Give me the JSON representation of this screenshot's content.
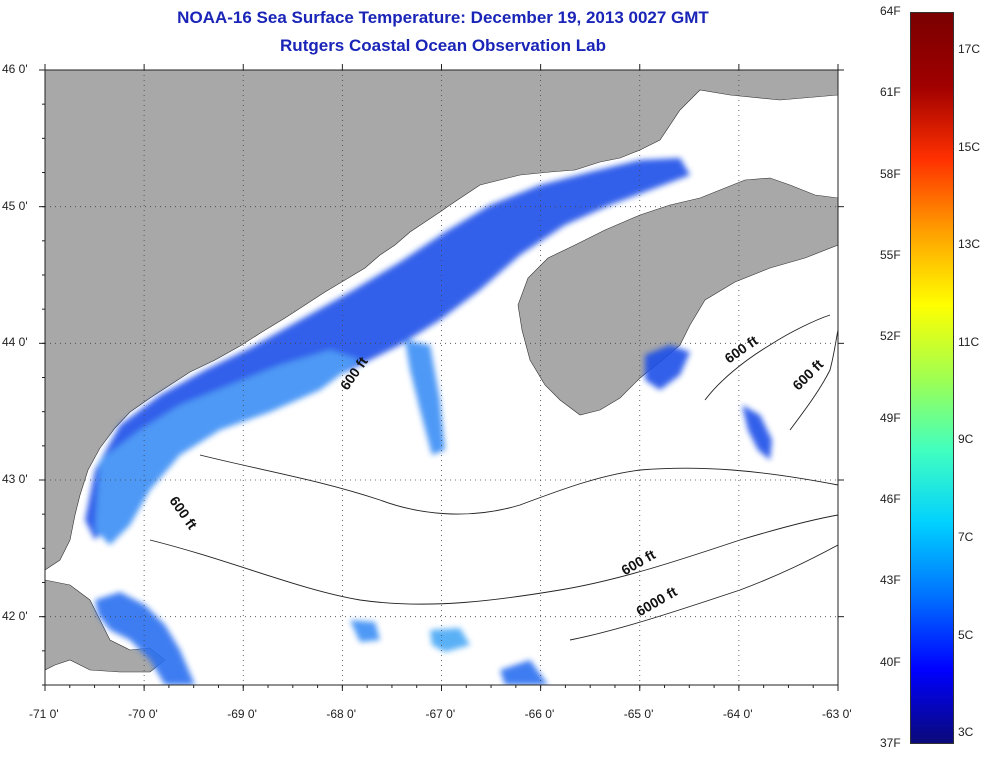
{
  "title": {
    "line1": "NOAA-16 Sea Surface Temperature:  December 19, 2013 0027 GMT",
    "line2": "Rutgers Coastal Ocean Observation Lab"
  },
  "axes": {
    "lon_ticks": [
      {
        "value": -71,
        "label": "-71 0'"
      },
      {
        "value": -70,
        "label": "-70 0'"
      },
      {
        "value": -69,
        "label": "-69 0'"
      },
      {
        "value": -68,
        "label": "-68 0'"
      },
      {
        "value": -67,
        "label": "-67 0'"
      },
      {
        "value": -66,
        "label": "-66 0'"
      },
      {
        "value": -65,
        "label": "-65 0'"
      },
      {
        "value": -64,
        "label": "-64 0'"
      },
      {
        "value": -63,
        "label": "-63 0'"
      }
    ],
    "lat_ticks": [
      {
        "value": 46,
        "label": "46 0'"
      },
      {
        "value": 45,
        "label": "45 0'"
      },
      {
        "value": 44,
        "label": "44 0'"
      },
      {
        "value": 43,
        "label": "43 0'"
      },
      {
        "value": 42,
        "label": "42 0'"
      }
    ],
    "lon_range": [
      -71,
      -63
    ],
    "lat_range": [
      41.5,
      46
    ],
    "grid": true
  },
  "contour_labels": [
    {
      "text": "600 ft",
      "lon": -67.95,
      "lat": 43.65
    },
    {
      "text": "600 ft",
      "lon": -69.75,
      "lat": 42.85
    },
    {
      "text": "600 ft",
      "lon": -64.1,
      "lat": 43.85
    },
    {
      "text": "600 ft",
      "lon": -63.4,
      "lat": 43.65
    },
    {
      "text": "600 ft",
      "lon": -65.15,
      "lat": 42.3
    },
    {
      "text": "6000 ft",
      "lon": -65.0,
      "lat": 42.0
    }
  ],
  "colorbar": {
    "fahrenheit_labels": [
      "64F",
      "61F",
      "58F",
      "55F",
      "52F",
      "49F",
      "46F",
      "43F",
      "40F",
      "37F"
    ],
    "celsius_labels": [
      "17C",
      "15C",
      "13C",
      "11C",
      "9C",
      "7C",
      "5C",
      "3C"
    ],
    "colors": [
      "#0a0a7a",
      "#0000ff",
      "#0070ff",
      "#00d0ff",
      "#40ffc0",
      "#a0ff50",
      "#ffff00",
      "#ffa000",
      "#ff3000",
      "#a00000",
      "#7a0000"
    ]
  },
  "colors": {
    "land": "#a8a8a8",
    "ocean": "#ffffff",
    "sst_cold": "#1030e0",
    "sst_mid": "#20a0f0",
    "contour": "#222222",
    "grid": "#444444"
  }
}
